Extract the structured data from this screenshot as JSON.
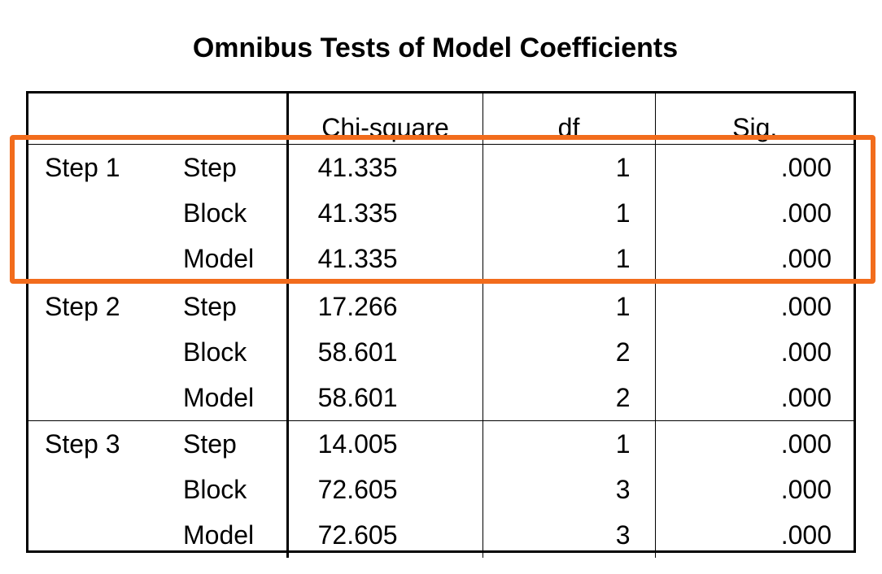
{
  "title": "Omnibus Tests of Model Coefficients",
  "columns": [
    "",
    "",
    "Chi-square",
    "df",
    "Sig."
  ],
  "steps": [
    {
      "label": "Step 1",
      "rows": [
        {
          "name": "Step",
          "chi_square": "41.335",
          "df": "1",
          "sig": ".000"
        },
        {
          "name": "Block",
          "chi_square": "41.335",
          "df": "1",
          "sig": ".000"
        },
        {
          "name": "Model",
          "chi_square": "41.335",
          "df": "1",
          "sig": ".000"
        }
      ]
    },
    {
      "label": "Step 2",
      "rows": [
        {
          "name": "Step",
          "chi_square": "17.266",
          "df": "1",
          "sig": ".000"
        },
        {
          "name": "Block",
          "chi_square": "58.601",
          "df": "2",
          "sig": ".000"
        },
        {
          "name": "Model",
          "chi_square": "58.601",
          "df": "2",
          "sig": ".000"
        }
      ]
    },
    {
      "label": "Step 3",
      "rows": [
        {
          "name": "Step",
          "chi_square": "14.005",
          "df": "1",
          "sig": ".000"
        },
        {
          "name": "Block",
          "chi_square": "72.605",
          "df": "3",
          "sig": ".000"
        },
        {
          "name": "Model",
          "chi_square": "72.605",
          "df": "3",
          "sig": ".000"
        }
      ]
    }
  ],
  "highlight": {
    "target": "Step 1",
    "color": "#f26c1c"
  }
}
